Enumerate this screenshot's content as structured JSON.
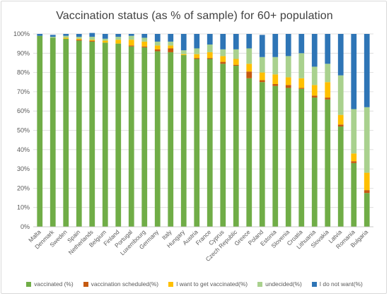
{
  "chart_data": {
    "type": "bar",
    "stacked": true,
    "title": "Vaccination status (as % of sample) for 60+ population",
    "ylim": [
      0,
      100
    ],
    "y_ticks": [
      "0%",
      "10%",
      "20%",
      "30%",
      "40%",
      "50%",
      "60%",
      "70%",
      "80%",
      "90%",
      "100%"
    ],
    "grid": true,
    "legend_position": "bottom",
    "categories": [
      "Malta",
      "Denmark",
      "Sweden",
      "Spain",
      "Netherlands",
      "Belgium",
      "Finland",
      "Portugal",
      "Luxembourg",
      "Germany",
      "Italy",
      "Hungary",
      "Austria",
      "France",
      "Cyprus",
      "Czech Republic",
      "Greece",
      "Poland",
      "Estonia",
      "Slovenia",
      "Croatia",
      "Lithuania",
      "Slovakia",
      "Latvia",
      "Romania",
      "Bulgaria"
    ],
    "series": [
      {
        "name": "vaccinated (%)",
        "color": "#70ad47",
        "values": [
          99,
          98,
          97.5,
          96.5,
          96,
          95.5,
          95,
          93.5,
          93,
          91,
          90.5,
          89,
          87,
          87,
          84.5,
          83.5,
          77,
          75,
          73,
          72,
          71.5,
          67,
          66,
          52,
          33,
          17.5
        ]
      },
      {
        "name": "vaccination scheduled(%)",
        "color": "#c55a11",
        "values": [
          0,
          0,
          0,
          0.5,
          0.5,
          0,
          0,
          0.5,
          0.5,
          1,
          2,
          0,
          0.5,
          0.5,
          1,
          0.5,
          3.5,
          1,
          1,
          1.5,
          0.5,
          1,
          1,
          1,
          1,
          1.5
        ]
      },
      {
        "name": "I want to get vaccinated(%)",
        "color": "#ffc000",
        "values": [
          0,
          0,
          0.5,
          0.5,
          0.5,
          1,
          2,
          3,
          2.5,
          2,
          1.5,
          0.5,
          2,
          3,
          3,
          3,
          4,
          4,
          5,
          4,
          5,
          5.5,
          8,
          5,
          4,
          9
        ]
      },
      {
        "name": "undecided(%)",
        "color": "#a9d18e",
        "values": [
          0,
          0.5,
          1,
          1,
          1.5,
          1,
          1.5,
          2,
          2,
          2,
          2,
          2,
          3,
          4,
          3.5,
          5,
          8,
          8,
          9,
          11,
          13,
          9.5,
          9.5,
          20.5,
          23,
          34
        ]
      },
      {
        "name": "I do not want(%)",
        "color": "#2e75b6",
        "values": [
          1,
          1,
          1,
          1.5,
          2,
          2.5,
          1.5,
          1,
          2,
          4,
          4,
          8.5,
          7.5,
          5.5,
          8,
          8,
          7.5,
          11.5,
          12,
          11.5,
          10,
          17,
          15.5,
          21.5,
          39,
          38
        ]
      }
    ]
  }
}
